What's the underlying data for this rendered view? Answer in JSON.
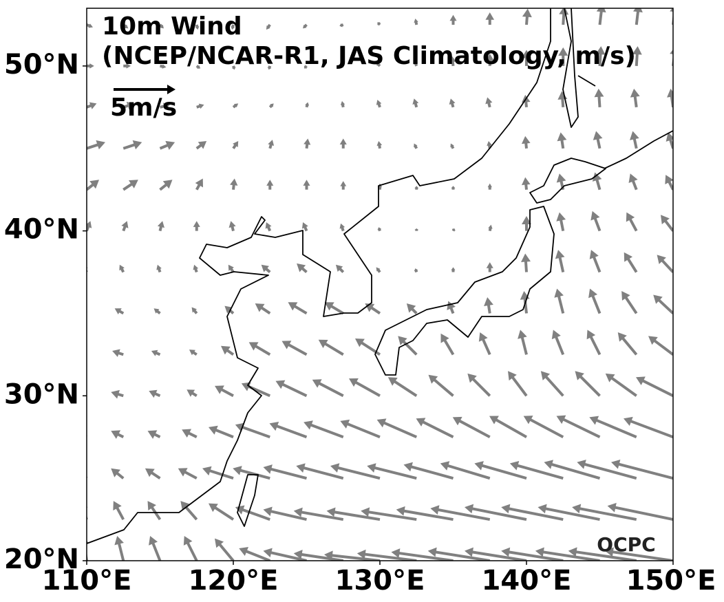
{
  "map": {
    "title": "10m Wind",
    "subtitle": "(NCEP/NCAR-R1, JAS Climatology, m/s)",
    "credit": "OCPC",
    "reference": {
      "value": 5,
      "label": "5m/s"
    },
    "xlim": [
      110,
      150
    ],
    "ylim": [
      20,
      53.5
    ],
    "xticks": [
      {
        "value": 110,
        "label": "110°E"
      },
      {
        "value": 120,
        "label": "120°E"
      },
      {
        "value": 130,
        "label": "130°E"
      },
      {
        "value": 140,
        "label": "140°E"
      },
      {
        "value": 150,
        "label": "150°E"
      }
    ],
    "yticks": [
      {
        "value": 20,
        "label": "20°N"
      },
      {
        "value": 30,
        "label": "30°N"
      },
      {
        "value": 40,
        "label": "40°N"
      },
      {
        "value": 50,
        "label": "50°N"
      }
    ],
    "vector_color": "#808080",
    "wind": {
      "lons": [
        110,
        112.5,
        115,
        117.5,
        120,
        122.5,
        125,
        127.5,
        130,
        132.5,
        135,
        137.5,
        140,
        142.5,
        145,
        147.5,
        150
      ],
      "lats": [
        20,
        22.5,
        25,
        27.5,
        30,
        32.5,
        35,
        37.5,
        40,
        42.5,
        45,
        47.5,
        50,
        52.5
      ],
      "u": [
        [
          -0.3,
          -0.5,
          -0.8,
          -1,
          -1.5,
          -2.5,
          -3.5,
          -4,
          -4.5,
          -4.8,
          -5,
          -5,
          -5,
          -5,
          -5.2,
          -5.5,
          -5.5
        ],
        [
          -0.5,
          -0.8,
          -1,
          -1.3,
          -2,
          -2.8,
          -3.5,
          -4,
          -4.3,
          -4.5,
          -4.6,
          -4.8,
          -5,
          -5,
          -5,
          -5.2,
          -5.3
        ],
        [
          -0.8,
          -1,
          -1.2,
          -1.5,
          -2.5,
          -3,
          -3.5,
          -3.8,
          -4,
          -4,
          -4,
          -4,
          -4.2,
          -4.3,
          -4.5,
          -4.8,
          -5
        ],
        [
          -1,
          -1,
          -1,
          -1.2,
          -2,
          -2.8,
          -3,
          -3.2,
          -3.2,
          -3.2,
          -3,
          -3,
          -3,
          -3.2,
          -3.5,
          -3.8,
          -4
        ],
        [
          -1,
          -1,
          -0.9,
          -0.8,
          -1.5,
          -2.3,
          -2.5,
          -2.5,
          -2.5,
          -2.3,
          -2,
          -1.8,
          -1.5,
          -1.8,
          -2,
          -2.5,
          -3
        ],
        [
          -1,
          -0.9,
          -0.7,
          -0.6,
          -1,
          -1.7,
          -2,
          -2,
          -2,
          -1.5,
          -1,
          -0.8,
          -0.5,
          -0.8,
          -1,
          -1.5,
          -2
        ],
        [
          -0.8,
          -0.7,
          -0.5,
          -0.4,
          -0.7,
          -1.2,
          -1.5,
          -1.5,
          -1.2,
          -0.8,
          -0.4,
          -0.2,
          -0.2,
          -0.5,
          -0.8,
          -1.2,
          -1.6
        ],
        [
          -0.3,
          -0.3,
          -0.2,
          -0.2,
          -0.4,
          -0.7,
          -0.8,
          -0.6,
          -0.3,
          -0.1,
          0,
          0,
          -0.1,
          -0.4,
          -0.7,
          -1,
          -1.3
        ],
        [
          0.3,
          0.3,
          0.2,
          0,
          -0.2,
          -0.3,
          -0.3,
          -0.2,
          -0.1,
          0,
          0.1,
          0.1,
          0,
          -0.3,
          -0.6,
          -0.8,
          -1
        ],
        [
          1,
          1.2,
          1,
          0.5,
          0.1,
          0,
          0,
          0,
          0,
          0,
          0,
          0,
          -0.1,
          -0.3,
          -0.4,
          -0.5,
          -0.6
        ],
        [
          1.5,
          1.5,
          1.2,
          0.8,
          0.4,
          0.2,
          0.1,
          0,
          -0.1,
          -0.2,
          -0.2,
          -0.1,
          -0.1,
          -0.2,
          -0.3,
          -0.3,
          -0.4
        ],
        [
          0.8,
          0.9,
          0.8,
          0.6,
          0.4,
          0.3,
          0.1,
          -0.1,
          -0.2,
          -0.2,
          -0.2,
          -0.2,
          -0.1,
          -0.1,
          -0.1,
          -0.2,
          -0.2
        ],
        [
          0.6,
          0.6,
          0.5,
          0.3,
          0.1,
          -0.1,
          -0.2,
          -0.3,
          -0.3,
          -0.2,
          -0.1,
          0,
          0,
          0,
          0.1,
          0.1,
          0.2
        ],
        [
          0.5,
          0.4,
          0.3,
          0.1,
          -0.1,
          -0.3,
          -0.3,
          -0.3,
          -0.2,
          -0.1,
          0,
          0,
          0.1,
          0.1,
          0.2,
          0.2,
          0.2
        ]
      ],
      "v": [
        [
          2,
          2,
          2,
          2,
          1.8,
          1,
          0.8,
          0.6,
          0.5,
          0.6,
          0.7,
          0.8,
          0.8,
          0.8,
          0.8,
          0.8,
          0.8
        ],
        [
          1.5,
          1.5,
          1.5,
          1.5,
          1.3,
          1,
          0.8,
          0.7,
          0.7,
          0.7,
          0.8,
          0.9,
          1,
          1,
          1,
          1,
          1.1
        ],
        [
          0.8,
          0.8,
          0.8,
          0.8,
          0.8,
          0.8,
          0.9,
          1,
          1,
          1,
          1.1,
          1.2,
          1.2,
          1.2,
          1.3,
          1.3,
          1.3
        ],
        [
          0.5,
          0.5,
          0.5,
          0.6,
          0.8,
          1,
          1.1,
          1.2,
          1.3,
          1.4,
          1.5,
          1.6,
          1.7,
          1.7,
          1.7,
          1.6,
          1.5
        ],
        [
          0.3,
          0.3,
          0.4,
          0.5,
          0.8,
          1,
          1.2,
          1.3,
          1.4,
          1.5,
          1.7,
          1.8,
          2,
          2,
          2,
          1.8,
          1.5
        ],
        [
          0.2,
          0.3,
          0.3,
          0.4,
          0.7,
          1,
          1.1,
          1.2,
          1.3,
          1.5,
          1.7,
          1.8,
          2,
          2,
          2,
          1.8,
          1.5
        ],
        [
          0.3,
          0.4,
          0.4,
          0.5,
          0.6,
          0.8,
          0.9,
          0.9,
          0.8,
          0.8,
          1,
          1.3,
          1.8,
          2,
          2,
          1.8,
          1.5
        ],
        [
          0.6,
          0.6,
          0.6,
          0.6,
          0.6,
          0.6,
          0.7,
          0.6,
          0.4,
          0.3,
          0.4,
          0.8,
          1.5,
          1.8,
          1.8,
          1.6,
          1.4
        ],
        [
          0.8,
          0.8,
          0.8,
          0.8,
          0.8,
          0.7,
          0.7,
          0.6,
          0.3,
          0.2,
          0.2,
          0.5,
          1.2,
          1.5,
          1.6,
          1.5,
          1.3
        ],
        [
          0.8,
          0.8,
          0.8,
          0.9,
          0.9,
          0.8,
          0.8,
          0.7,
          0.5,
          0.3,
          0.3,
          0.5,
          1,
          1.3,
          1.4,
          1.3,
          1.2
        ],
        [
          0.5,
          0.5,
          0.5,
          0.6,
          0.6,
          0.7,
          0.8,
          0.8,
          0.6,
          0.4,
          0.4,
          0.6,
          1,
          1.3,
          1.4,
          1.4,
          1.3
        ],
        [
          0.3,
          0.3,
          0.2,
          0.2,
          0.3,
          0.3,
          0.4,
          0.5,
          0.6,
          0.7,
          0.7,
          0.8,
          1,
          1.3,
          1.5,
          1.5,
          1.5
        ],
        [
          0,
          0,
          -0.1,
          -0.2,
          -0.3,
          -0.3,
          -0.2,
          0,
          0.3,
          0.5,
          0.8,
          1,
          1.3,
          1.5,
          1.6,
          1.6,
          1.6
        ],
        [
          -0.2,
          -0.3,
          -0.3,
          -0.4,
          -0.4,
          -0.4,
          -0.3,
          -0.1,
          0.2,
          0.5,
          0.8,
          1,
          1.3,
          1.5,
          1.7,
          1.7,
          1.7
        ]
      ]
    }
  }
}
